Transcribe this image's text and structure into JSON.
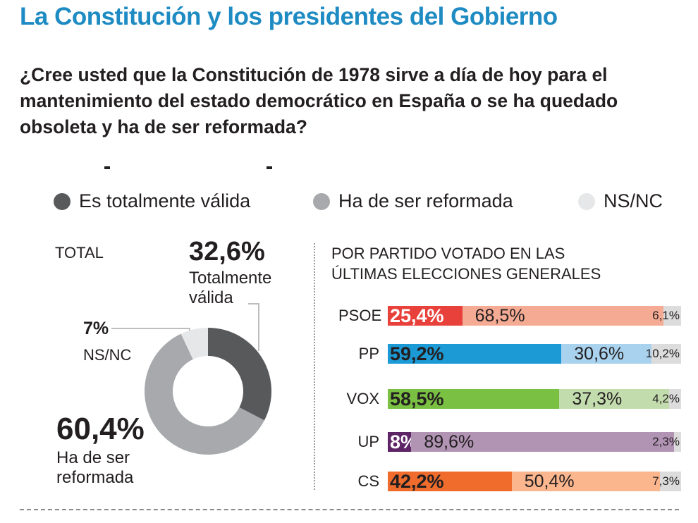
{
  "title": "La Constitución y los presidentes del Gobierno",
  "question": "¿Cree usted que la Constitución de 1978 sirve a día de hoy para el mantenimiento del estado democrático en España o se ha quedado obsoleta y ha de ser reformada?",
  "legend": [
    {
      "label": "Es totalmente válida",
      "color": "#58595b"
    },
    {
      "label": "Ha de ser reformada",
      "color": "#a7a9ac"
    },
    {
      "label": "NS/NC",
      "color": "#e6e7e8"
    }
  ],
  "total": {
    "label": "TOTAL",
    "valida_pct": "32,6%",
    "valida_label": "Totalmente válida",
    "nsnc_pct": "7%",
    "nsnc_label": "NS/NC",
    "reformada_pct": "60,4%",
    "reformada_label": "Ha de ser reformada"
  },
  "party_heading": "POR PARTIDO VOTADO EN LAS ÚLTIMAS ELECCIONES GENERALES",
  "chart_data": [
    {
      "type": "pie",
      "title": "TOTAL",
      "labels": [
        "Totalmente válida",
        "Ha de ser reformada",
        "NS/NC"
      ],
      "values": [
        32.6,
        60.4,
        7
      ],
      "value_labels": [
        "32,6%",
        "60,4%",
        "7%"
      ],
      "colors": [
        "#58595b",
        "#a7a9ac",
        "#e6e7e8"
      ]
    },
    {
      "type": "bar",
      "orientation": "horizontal",
      "stacked": true,
      "title": "POR PARTIDO VOTADO EN LAS ÚLTIMAS ELECCIONES GENERALES",
      "categories": [
        "PSOE",
        "PP",
        "VOX",
        "UP",
        "CS"
      ],
      "series": [
        {
          "name": "Es totalmente válida",
          "values": [
            25.4,
            59.2,
            58.5,
            8,
            42.2
          ],
          "labels": [
            "25,4%",
            "59,2%",
            "58,5%",
            "8%",
            "42,2%"
          ]
        },
        {
          "name": "Ha de ser reformada",
          "values": [
            68.5,
            30.6,
            37.3,
            89.6,
            50.4
          ],
          "labels": [
            "68,5%",
            "30,6%",
            "37,3%",
            "89,6%",
            "50,4%"
          ]
        },
        {
          "name": "NS/NC",
          "values": [
            6.1,
            10.2,
            4.2,
            2.3,
            7.3
          ],
          "labels": [
            "6,1%",
            "10,2%",
            "4,2%",
            "2,3%",
            "7,3%"
          ]
        }
      ],
      "party_colors": [
        {
          "dark": "#e8403a",
          "light": "#f5aa93",
          "nsnc": "#dcdcdc",
          "text": "#ffffff"
        },
        {
          "dark": "#1b9ad6",
          "light": "#a9d2ee",
          "nsnc": "#dcdcdc",
          "text": "#231f20"
        },
        {
          "dark": "#7ac143",
          "light": "#c3dcae",
          "nsnc": "#dcdcdc",
          "text": "#231f20"
        },
        {
          "dark": "#5d2466",
          "light": "#b193b4",
          "nsnc": "#dcdcdc",
          "text": "#ffffff"
        },
        {
          "dark": "#ef6c2c",
          "light": "#fbb68e",
          "nsnc": "#dcdcdc",
          "text": "#231f20"
        }
      ],
      "xlim": [
        0,
        100
      ]
    }
  ]
}
